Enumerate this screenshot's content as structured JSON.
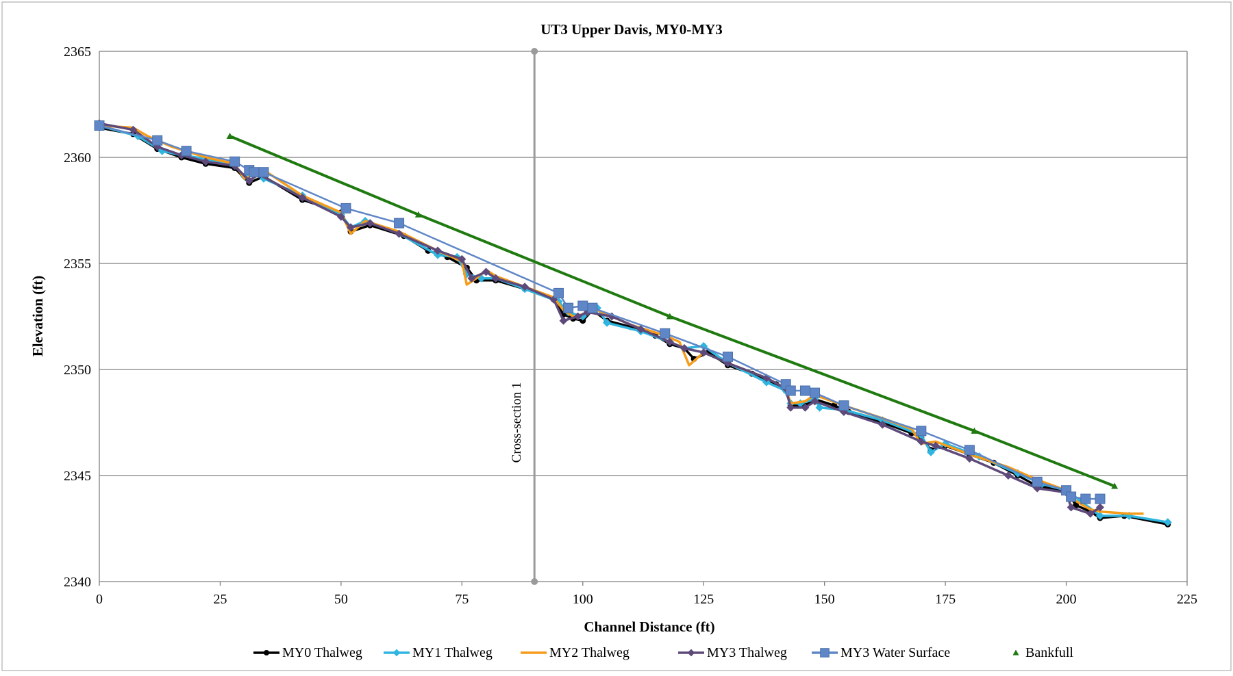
{
  "chart_data": {
    "type": "line",
    "title": "UT3 Upper Davis, MY0-MY3",
    "xlabel": "Channel Distance (ft)",
    "ylabel": "Elevation (ft)",
    "xlim": [
      0,
      225
    ],
    "ylim": [
      2340,
      2365
    ],
    "x_ticks": [
      "0",
      "25",
      "50",
      "75",
      "100",
      "125",
      "150",
      "175",
      "200",
      "225"
    ],
    "y_ticks": [
      "2340",
      "2345",
      "2350",
      "2355",
      "2360",
      "2365"
    ],
    "grid": "horizontal",
    "legend_position": "bottom",
    "vertical_marker": {
      "x": 90,
      "label": "Cross-section 1"
    },
    "colors": {
      "my0": "#000000",
      "my1": "#2fb5e0",
      "my2": "#f59c1a",
      "my3": "#5e4a7a",
      "my3ws": "#5f86c6",
      "bankfull": "#1f7a10",
      "grid": "#7f7f7f",
      "marker": "#9a9a9a"
    },
    "series": [
      {
        "key": "my0",
        "name": "MY0 Thalweg",
        "marker": "circle",
        "points": [
          [
            0,
            2361.4
          ],
          [
            7,
            2361.1
          ],
          [
            12,
            2360.4
          ],
          [
            17,
            2360.0
          ],
          [
            22,
            2359.7
          ],
          [
            28,
            2359.5
          ],
          [
            31,
            2358.8
          ],
          [
            34,
            2359.1
          ],
          [
            42,
            2358.0
          ],
          [
            50,
            2357.4
          ],
          [
            52,
            2356.5
          ],
          [
            56,
            2356.8
          ],
          [
            63,
            2356.3
          ],
          [
            68,
            2355.6
          ],
          [
            72,
            2355.3
          ],
          [
            76,
            2354.8
          ],
          [
            78,
            2354.2
          ],
          [
            82,
            2354.2
          ],
          [
            88,
            2353.8
          ],
          [
            94,
            2353.3
          ],
          [
            96,
            2352.6
          ],
          [
            98,
            2352.4
          ],
          [
            100,
            2352.3
          ],
          [
            102,
            2352.8
          ],
          [
            105,
            2352.3
          ],
          [
            110,
            2352.0
          ],
          [
            115,
            2351.6
          ],
          [
            118,
            2351.2
          ],
          [
            121,
            2351.0
          ],
          [
            123,
            2350.5
          ],
          [
            126,
            2350.8
          ],
          [
            130,
            2350.2
          ],
          [
            135,
            2349.8
          ],
          [
            140,
            2349.3
          ],
          [
            142,
            2349.0
          ],
          [
            143,
            2348.3
          ],
          [
            146,
            2348.3
          ],
          [
            148,
            2348.6
          ],
          [
            152,
            2348.3
          ],
          [
            155,
            2348.0
          ],
          [
            162,
            2347.5
          ],
          [
            168,
            2347.0
          ],
          [
            170,
            2346.8
          ],
          [
            172,
            2346.2
          ],
          [
            175,
            2346.4
          ],
          [
            180,
            2346.0
          ],
          [
            185,
            2345.6
          ],
          [
            190,
            2345.0
          ],
          [
            194,
            2344.5
          ],
          [
            200,
            2344.3
          ],
          [
            202,
            2343.6
          ],
          [
            205,
            2343.3
          ],
          [
            207,
            2343.0
          ],
          [
            212,
            2343.1
          ],
          [
            221,
            2342.7
          ]
        ]
      },
      {
        "key": "my1",
        "name": "MY1 Thalweg",
        "marker": "diamond",
        "points": [
          [
            0,
            2361.5
          ],
          [
            8,
            2361.0
          ],
          [
            13,
            2360.3
          ],
          [
            17,
            2360.1
          ],
          [
            23,
            2359.9
          ],
          [
            28,
            2359.6
          ],
          [
            30,
            2359.1
          ],
          [
            33,
            2359.3
          ],
          [
            34,
            2359.0
          ],
          [
            42,
            2358.2
          ],
          [
            50,
            2357.3
          ],
          [
            52,
            2356.7
          ],
          [
            55,
            2357.0
          ],
          [
            62,
            2356.4
          ],
          [
            70,
            2355.4
          ],
          [
            74,
            2355.3
          ],
          [
            76,
            2354.5
          ],
          [
            79,
            2354.3
          ],
          [
            82,
            2354.3
          ],
          [
            88,
            2353.8
          ],
          [
            95,
            2353.2
          ],
          [
            97,
            2352.7
          ],
          [
            100,
            2352.5
          ],
          [
            103,
            2352.9
          ],
          [
            105,
            2352.2
          ],
          [
            112,
            2351.8
          ],
          [
            118,
            2351.3
          ],
          [
            121,
            2351.0
          ],
          [
            125,
            2351.1
          ],
          [
            130,
            2350.3
          ],
          [
            138,
            2349.4
          ],
          [
            142,
            2349.0
          ],
          [
            143,
            2348.4
          ],
          [
            145,
            2348.4
          ],
          [
            148,
            2348.6
          ],
          [
            149,
            2348.2
          ],
          [
            154,
            2348.1
          ],
          [
            162,
            2347.6
          ],
          [
            170,
            2346.9
          ],
          [
            172,
            2346.1
          ],
          [
            175,
            2346.5
          ],
          [
            182,
            2345.9
          ],
          [
            190,
            2345.1
          ],
          [
            195,
            2344.6
          ],
          [
            200,
            2344.3
          ],
          [
            203,
            2343.8
          ],
          [
            207,
            2343.1
          ],
          [
            213,
            2343.1
          ],
          [
            221,
            2342.8
          ]
        ]
      },
      {
        "key": "my2",
        "name": "MY2 Thalweg",
        "marker": "none",
        "points": [
          [
            0,
            2361.5
          ],
          [
            7,
            2361.4
          ],
          [
            10,
            2361.0
          ],
          [
            15,
            2360.5
          ],
          [
            22,
            2360.0
          ],
          [
            28,
            2359.7
          ],
          [
            30,
            2359.0
          ],
          [
            34,
            2359.4
          ],
          [
            42,
            2358.2
          ],
          [
            50,
            2357.4
          ],
          [
            52,
            2356.4
          ],
          [
            55,
            2357.0
          ],
          [
            62,
            2356.5
          ],
          [
            70,
            2355.6
          ],
          [
            75,
            2355.1
          ],
          [
            76,
            2354.0
          ],
          [
            78,
            2354.3
          ],
          [
            80,
            2354.7
          ],
          [
            82,
            2354.4
          ],
          [
            88,
            2353.9
          ],
          [
            94,
            2353.4
          ],
          [
            96,
            2352.8
          ],
          [
            98,
            2352.5
          ],
          [
            100,
            2352.6
          ],
          [
            102,
            2352.9
          ],
          [
            110,
            2352.1
          ],
          [
            117,
            2351.6
          ],
          [
            120,
            2351.3
          ],
          [
            122,
            2350.2
          ],
          [
            125,
            2350.8
          ],
          [
            130,
            2350.3
          ],
          [
            138,
            2349.6
          ],
          [
            142,
            2349.1
          ],
          [
            143,
            2348.4
          ],
          [
            146,
            2348.5
          ],
          [
            148,
            2348.8
          ],
          [
            154,
            2348.3
          ],
          [
            162,
            2347.7
          ],
          [
            168,
            2347.2
          ],
          [
            170,
            2346.5
          ],
          [
            173,
            2346.6
          ],
          [
            180,
            2346.0
          ],
          [
            188,
            2345.4
          ],
          [
            194,
            2344.8
          ],
          [
            200,
            2344.3
          ],
          [
            202,
            2343.8
          ],
          [
            205,
            2343.4
          ],
          [
            207,
            2343.3
          ],
          [
            213,
            2343.2
          ],
          [
            216,
            2343.2
          ]
        ]
      },
      {
        "key": "my3",
        "name": "MY3 Thalweg",
        "marker": "diamond",
        "points": [
          [
            0,
            2361.6
          ],
          [
            7,
            2361.3
          ],
          [
            12,
            2360.5
          ],
          [
            17,
            2360.1
          ],
          [
            22,
            2359.8
          ],
          [
            28,
            2359.6
          ],
          [
            31,
            2358.9
          ],
          [
            33,
            2359.2
          ],
          [
            42,
            2358.1
          ],
          [
            50,
            2357.2
          ],
          [
            52,
            2356.7
          ],
          [
            56,
            2356.9
          ],
          [
            62,
            2356.4
          ],
          [
            70,
            2355.6
          ],
          [
            75,
            2355.2
          ],
          [
            77,
            2354.3
          ],
          [
            80,
            2354.6
          ],
          [
            82,
            2354.3
          ],
          [
            88,
            2353.9
          ],
          [
            94,
            2353.3
          ],
          [
            96,
            2352.3
          ],
          [
            99,
            2352.5
          ],
          [
            101,
            2352.7
          ],
          [
            106,
            2352.5
          ],
          [
            112,
            2351.9
          ],
          [
            118,
            2351.3
          ],
          [
            121,
            2351.0
          ],
          [
            125,
            2350.8
          ],
          [
            130,
            2350.3
          ],
          [
            138,
            2349.6
          ],
          [
            142,
            2349.1
          ],
          [
            143,
            2348.2
          ],
          [
            146,
            2348.2
          ],
          [
            148,
            2348.5
          ],
          [
            154,
            2348.0
          ],
          [
            162,
            2347.4
          ],
          [
            170,
            2346.6
          ],
          [
            173,
            2346.4
          ],
          [
            180,
            2345.8
          ],
          [
            188,
            2345.0
          ],
          [
            194,
            2344.4
          ],
          [
            200,
            2344.2
          ],
          [
            201,
            2343.5
          ],
          [
            205,
            2343.2
          ],
          [
            207,
            2343.5
          ]
        ]
      },
      {
        "key": "my3ws",
        "name": "MY3 Water Surface",
        "marker": "square",
        "points": [
          [
            0,
            2361.5
          ],
          [
            12,
            2360.8
          ],
          [
            18,
            2360.3
          ],
          [
            28,
            2359.8
          ],
          [
            31,
            2359.4
          ],
          [
            32,
            2359.3
          ],
          [
            34,
            2359.3
          ],
          [
            51,
            2357.6
          ],
          [
            62,
            2356.9
          ],
          [
            95,
            2353.6
          ],
          [
            97,
            2352.9
          ],
          [
            100,
            2353.0
          ],
          [
            102,
            2352.9
          ],
          [
            117,
            2351.7
          ],
          [
            130,
            2350.6
          ],
          [
            142,
            2349.3
          ],
          [
            143,
            2349.0
          ],
          [
            146,
            2349.0
          ],
          [
            148,
            2348.9
          ],
          [
            154,
            2348.3
          ],
          [
            170,
            2347.1
          ],
          [
            180,
            2346.2
          ],
          [
            194,
            2344.7
          ],
          [
            200,
            2344.3
          ],
          [
            201,
            2344.0
          ],
          [
            204,
            2343.9
          ],
          [
            207,
            2343.9
          ]
        ]
      },
      {
        "key": "bankfull",
        "name": "Bankfull",
        "marker": "triangle",
        "points": [
          [
            27,
            2361.0
          ],
          [
            66,
            2357.3
          ],
          [
            118,
            2352.5
          ],
          [
            181,
            2347.1
          ],
          [
            210,
            2344.5
          ]
        ]
      }
    ],
    "legend_order": [
      "my0",
      "my1",
      "my2",
      "my3",
      "my3ws",
      "bankfull"
    ]
  }
}
